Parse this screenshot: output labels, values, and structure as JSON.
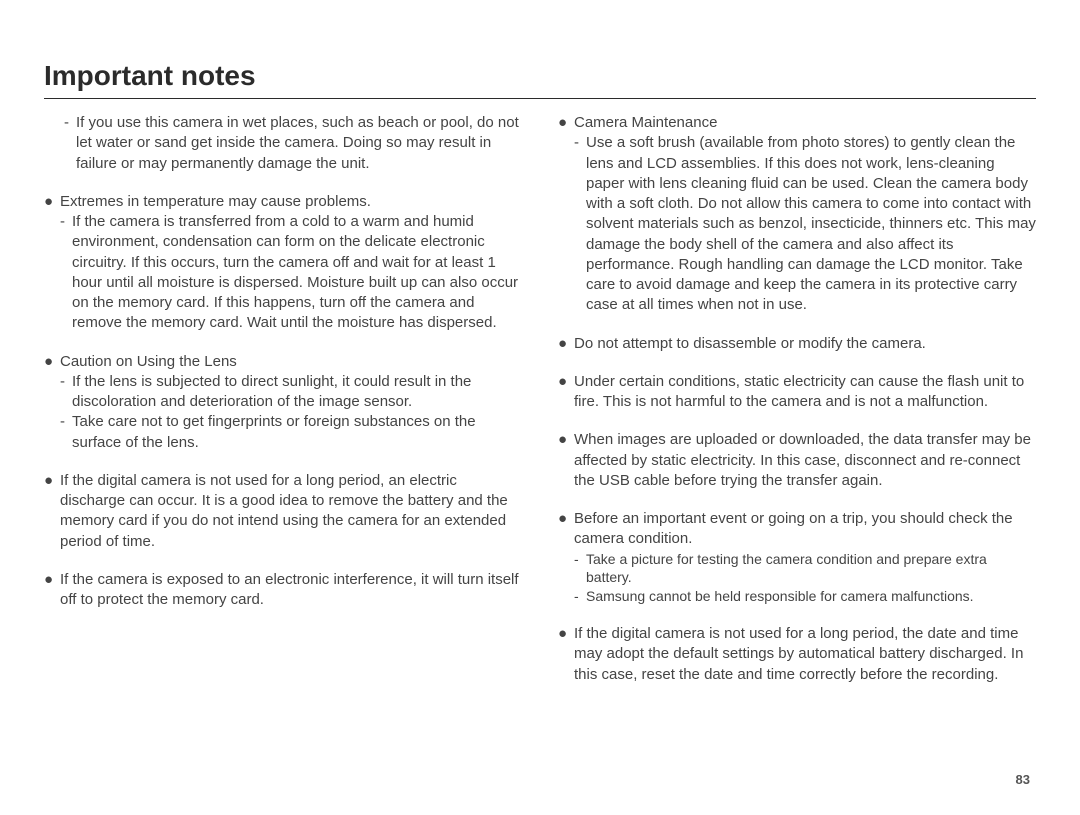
{
  "page": {
    "title": "Important notes",
    "number": "83",
    "background_color": "#ffffff",
    "text_color": "#444444",
    "title_color": "#2b2b2b",
    "rule_color": "#2b2b2b",
    "font_family": "Arial",
    "title_fontsize_pt": 21,
    "body_fontsize_pt": 11,
    "small_fontsize_pt": 10
  },
  "left": {
    "b0": {
      "sub0": "If you use this camera in wet places, such as beach or pool, do not let water or sand get inside the camera. Doing so may result in failure or may permanently damage the unit."
    },
    "b1": {
      "lead": "Extremes in temperature may cause problems.",
      "sub0": "If the camera is transferred from a cold to a warm and humid environment, condensation can form on the delicate electronic circuitry. If this occurs, turn the camera off and wait for at least 1 hour until all moisture is dispersed. Moisture built up can also occur on the memory card. If this happens, turn off the camera and remove the memory card. Wait until the moisture has dispersed."
    },
    "b2": {
      "lead": "Caution on Using the Lens",
      "sub0": "If the lens is subjected to direct sunlight, it could result in the discoloration and deterioration of the image sensor.",
      "sub1": "Take care not to get fingerprints or foreign substances on the surface of the lens."
    },
    "b3": {
      "lead": "If the digital camera is not used for a long period, an electric discharge can occur. It is a good idea to remove the battery and the memory card if you do not intend using the camera for an extended period of time."
    },
    "b4": {
      "lead": "If the camera is exposed to an electronic interference, it will turn itself off to protect the memory card."
    }
  },
  "right": {
    "b0": {
      "lead": "Camera Maintenance",
      "sub0": "Use a soft brush (available from photo stores) to gently clean the lens and LCD assemblies. If this does not work, lens-cleaning paper with lens cleaning fluid can be used.",
      "cont0": "Clean the camera body with a soft cloth. Do not allow this camera to come into contact with solvent materials such as benzol, insecticide, thinners etc. This may damage the body shell of the camera and also affect its performance. Rough handling can damage the LCD monitor. Take care to avoid damage and keep the camera in its protective carry case at all times when not in use."
    },
    "b1": {
      "lead": "Do not attempt to disassemble or modify the camera."
    },
    "b2": {
      "lead": "Under certain conditions, static electricity can cause the flash unit to fire. This is not harmful to the camera and is not a malfunction."
    },
    "b3": {
      "lead": "When images are uploaded or downloaded, the data transfer may be affected by static electricity. In this case, disconnect and re-connect the USB cable before trying the transfer again."
    },
    "b4": {
      "lead": "Before an important event or going on a trip, you should check the camera condition.",
      "sub0": "Take a picture for testing the camera condition and prepare extra battery.",
      "sub1": "Samsung cannot be held responsible for camera malfunctions."
    },
    "b5": {
      "lead": "If the digital camera is not used for a long period, the date and time may adopt the default settings by automatical battery discharged. In this case, reset the date and time correctly before the recording."
    }
  }
}
